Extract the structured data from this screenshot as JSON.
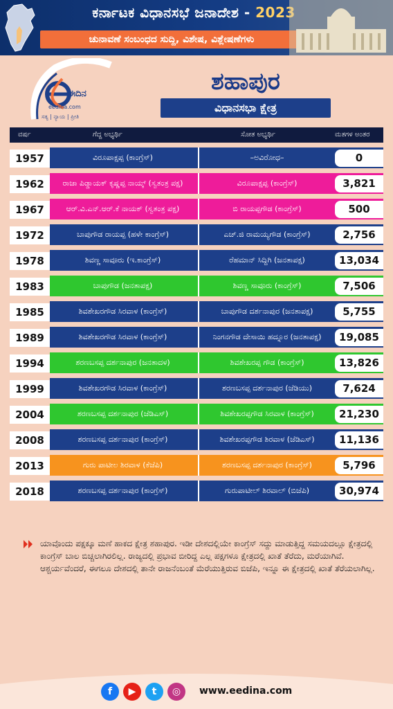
{
  "banner": {
    "title_prefix": "ಕರ್ನಾಟಕ ವಿಧಾನಸಭೆ ಜನಾದೇಶ -",
    "year": "2023",
    "subtitle": "ಚುನಾವಣೆ ಸಂಬಂಧದ ಸುದ್ದಿ, ವಿಶೇಷ, ವಿಶ್ಲೇಷಣೆಗಳು"
  },
  "logo": {
    "name": "ಈದಿನ",
    "site": "eedina.com",
    "tagline": "ಸತ್ಯ | ನ್ಯಾಯ | ಪ್ರೀತಿ"
  },
  "constituency": {
    "name": "ಶಹಾಪುರ",
    "label": "ವಿಧಾನಸಭಾ ಕ್ಷೇತ್ರ"
  },
  "table": {
    "headers": {
      "year": "ವರ್ಷ",
      "winner": "ಗೆದ್ದ ಅಭ್ಯರ್ಥಿ",
      "loser": "ಸೋತ ಅಭ್ಯರ್ಥಿ",
      "margin": "ಮತಗಳ ಅಂತರ"
    },
    "rows": [
      {
        "year": "1957",
        "winner": "ವಿರೂಪಾಕ್ಷಪ್ಪ (ಕಾಂಗ್ರೆಸ್)",
        "loser": "–ಅವಿರೋಧ–",
        "margin": "0",
        "color": "#1d3f8a"
      },
      {
        "year": "1962",
        "winner": "ರಾಜಾ ಪಿಡ್ಡಾಯಕ್ ಕೃಷ್ಣಪ್ಪ ನಾಯ್ಕ್ (ಸ್ವತಂತ್ರ ಪಕ್ಷ)",
        "loser": "ವಿರೂಪಾಕ್ಷಪ್ಪ (ಕಾಂಗ್ರೆಸ್)",
        "margin": "3,821",
        "color": "#ee1c9a"
      },
      {
        "year": "1967",
        "winner": "ಆರ್.ವಿ.ಎನ್.ಆರ್.ಕೆ ನಾಯಕ್ (ಸ್ವತಂತ್ರ ಪಕ್ಷ)",
        "loser": "ಬಿ ರಾಯಪ್ಪಗೌಡ (ಕಾಂಗ್ರೆಸ್)",
        "margin": "500",
        "color": "#ee1c9a"
      },
      {
        "year": "1972",
        "winner": "ಬಾಪುಗೌಡ ರಾಯಪ್ಪ (ಹಳೇ ಕಾಂಗ್ರೆಸ್)",
        "loser": "ಎಚ್.ಜಿ ರಾಮಯ್ಯಗೌಡ (ಕಾಂಗ್ರೆಸ್)",
        "margin": "2,756",
        "color": "#1d3f8a"
      },
      {
        "year": "1978",
        "winner": "ಶಿವಣ್ಣ ಸಾವೂರು (ಇ.ಕಾಂಗ್ರೆಸ್)",
        "loser": "ರೆಹಮಾನ್ ಸಿದ್ದಿಗಿ (ಜನತಾಪಕ್ಷ)",
        "margin": "13,034",
        "color": "#1d3f8a"
      },
      {
        "year": "1983",
        "winner": "ಬಾಪುಗೌಡ (ಜನತಾಪಕ್ಷ)",
        "loser": "ಶಿವಣ್ಣ ಸಾವೂರು (ಕಾಂಗ್ರೆಸ್)",
        "margin": "7,506",
        "color": "#2fc72f"
      },
      {
        "year": "1985",
        "winner": "ಶಿವಶೇಖರಗೌಡ ಸಿರವಾಳ (ಕಾಂಗ್ರೆಸ್)",
        "loser": "ಬಾಪುಗೌಡ ದರ್ಶನಾಪುರ (ಜನತಾಪಕ್ಷ)",
        "margin": "5,755",
        "color": "#1d3f8a"
      },
      {
        "year": "1989",
        "winner": "ಶಿವಶೇಖರಗೌಡ ಸಿರವಾಳ (ಕಾಂಗ್ರೆಸ್)",
        "loser": "ನಿಂಗನಗೌಡ ದೇಸಾಯಿ ಹದ್ನೂರ (ಜನತಾಪಕ್ಷ)",
        "margin": "19,085",
        "color": "#1d3f8a"
      },
      {
        "year": "1994",
        "winner": "ಶರಣಬಸಪ್ಪ ದರ್ಶನಾಪುರ (ಜನತಾದಳ)",
        "loser": "ಶಿವಶೇಖರಪ್ಪ ಗೌಡ (ಕಾಂಗ್ರೆಸ್)",
        "margin": "13,826",
        "color": "#2fc72f"
      },
      {
        "year": "1999",
        "winner": "ಶಿವಶೇಖರಗೌಡ ಸಿರವಾಳ (ಕಾಂಗ್ರೆಸ್)",
        "loser": "ಶರಣಬಸಪ್ಪ ದರ್ಶನಾಪುರ (ಜೆಡಿಯು)",
        "margin": "7,624",
        "color": "#1d3f8a"
      },
      {
        "year": "2004",
        "winner": "ಶರಣಬಸಪ್ಪ ದರ್ಶನಾಪುರ (ಜೆಡಿಎಸ್)",
        "loser": "ಶಿವಶೇಖರಪ್ಪಗೌಡ ಸಿರವಾಳ (ಕಾಂಗ್ರೆಸ್)",
        "margin": "21,230",
        "color": "#2fc72f"
      },
      {
        "year": "2008",
        "winner": "ಶರಣಬಸಪ್ಪ ದರ್ಶನಾಪುರ (ಕಾಂಗ್ರೆಸ್)",
        "loser": "ಶಿವಶೇಖರಪ್ಪಗೌಡ ಶಿರವಾಳ (ಜೆಡಿಎಸ್)",
        "margin": "11,136",
        "color": "#1d3f8a"
      },
      {
        "year": "2013",
        "winner": "ಗುರು ಪಾಟೀಲ ಶಿರವಾಳ (ಕೆಜೆಪಿ)",
        "loser": "ಶರಣಬಸಪ್ಪ ದರ್ಶನಾಪುರ (ಕಾಂಗ್ರೆಸ್)",
        "margin": "5,796",
        "color": "#f7931e"
      },
      {
        "year": "2018",
        "winner": "ಶರಣಬಸಪ್ಪ ದರ್ಶನಾಪುರ (ಕಾಂಗ್ರೆಸ್)",
        "loser": "ಗುರುಪಾಟೀಲ್ ಶಿರವಾಲ್ (ಬಿಜೆಪಿ)",
        "margin": "30,974",
        "color": "#1d3f8a"
      }
    ]
  },
  "note": {
    "text": "ಯಾವೊಂದು ಪಕ್ಷಕ್ಕೂ ಮಣೆ ಹಾಕದ ಕ್ಷೇತ್ರ ಶಹಾಪುರ. ಇಡೀ ದೇಶದಲ್ಲಿಯೇ ಕಾಂಗ್ರೆಸ್ ಸದ್ದು ಮಾಡುತ್ತಿದ್ದ ಸಮಯದಲ್ಲೂ ಕ್ಷೇತ್ರದಲ್ಲಿ ಕಾಂಗ್ರೆಸ್ ಬಾಲ ಬಿಚ್ಚಲಾಗಿರಲಿಲ್ಲ. ರಾಜ್ಯದಲ್ಲಿ ಪ್ರಭಾವ ಬೀರಿದ್ದ ಎಲ್ಲ ಪಕ್ಷಗಳೂ ಕ್ಷೇತ್ರದಲ್ಲಿ ಖಾತೆ ತೆರೆದು, ಮರೆಯಾಗಿವೆ. ಆಶ್ಚರ್ಯವೆಂದರೆ, ಈಗಲೂ ದೇಶದಲ್ಲಿ ತಾನೇ ರಾಜನೆಂಬಂತೆ ಮೆರೆಯುತ್ತಿರುವ ಬಿಜೆಪಿ, ಇನ್ನೂ ಈ ಕ್ಷೇತ್ರದಲ್ಲಿ ಖಾತೆ ತೆರೆಯಲಾಗಿಲ್ಲ."
  },
  "footer": {
    "site": "www.eedina.com",
    "icons": [
      "facebook-icon",
      "youtube-icon",
      "twitter-icon",
      "instagram-icon"
    ]
  },
  "colors": {
    "congress_blue": "#1d3f8a",
    "independent_pink": "#ee1c9a",
    "janata_green": "#2fc72f",
    "kjp_orange": "#f7931e",
    "accent_orange": "#f26f3a"
  }
}
